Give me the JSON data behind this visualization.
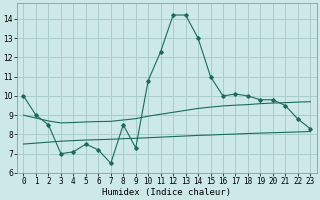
{
  "title": "",
  "xlabel": "Humidex (Indice chaleur)",
  "bg_color": "#cce8e8",
  "grid_color": "#aacccc",
  "line_color": "#1a6b5a",
  "line1": {
    "x": [
      0,
      1,
      2,
      3,
      4,
      5,
      6,
      7,
      8,
      9,
      10,
      11,
      12,
      13,
      14,
      15,
      16,
      17,
      18,
      19,
      20,
      21,
      22,
      23
    ],
    "y": [
      10.0,
      9.0,
      8.5,
      7.0,
      7.1,
      7.5,
      7.2,
      6.5,
      8.5,
      7.3,
      10.8,
      12.3,
      14.2,
      14.2,
      13.0,
      11.0,
      10.0,
      10.1,
      10.0,
      9.8,
      9.8,
      9.5,
      8.8,
      8.3
    ]
  },
  "line2": {
    "x": [
      0,
      1,
      2,
      3,
      4,
      5,
      6,
      7,
      8,
      9,
      10,
      11,
      12,
      13,
      14,
      15,
      16,
      17,
      18,
      19,
      20,
      21,
      22,
      23
    ],
    "y": [
      9.0,
      8.85,
      8.7,
      8.6,
      8.62,
      8.65,
      8.67,
      8.68,
      8.75,
      8.82,
      8.95,
      9.05,
      9.15,
      9.25,
      9.35,
      9.42,
      9.48,
      9.52,
      9.55,
      9.6,
      9.63,
      9.65,
      9.68,
      9.7
    ]
  },
  "line3": {
    "x": [
      0,
      1,
      2,
      3,
      4,
      5,
      6,
      7,
      8,
      9,
      10,
      11,
      12,
      13,
      14,
      15,
      16,
      17,
      18,
      19,
      20,
      21,
      22,
      23
    ],
    "y": [
      7.5,
      7.55,
      7.6,
      7.65,
      7.68,
      7.71,
      7.73,
      7.75,
      7.78,
      7.8,
      7.83,
      7.86,
      7.89,
      7.92,
      7.95,
      7.97,
      8.0,
      8.02,
      8.05,
      8.07,
      8.09,
      8.11,
      8.13,
      8.15
    ]
  },
  "xlim": [
    -0.5,
    23.5
  ],
  "ylim": [
    6,
    14.8
  ],
  "xticks": [
    0,
    1,
    2,
    3,
    4,
    5,
    6,
    7,
    8,
    9,
    10,
    11,
    12,
    13,
    14,
    15,
    16,
    17,
    18,
    19,
    20,
    21,
    22,
    23
  ],
  "yticks": [
    6,
    7,
    8,
    9,
    10,
    11,
    12,
    13,
    14
  ],
  "tick_fontsize": 5.5,
  "label_fontsize": 6.5
}
